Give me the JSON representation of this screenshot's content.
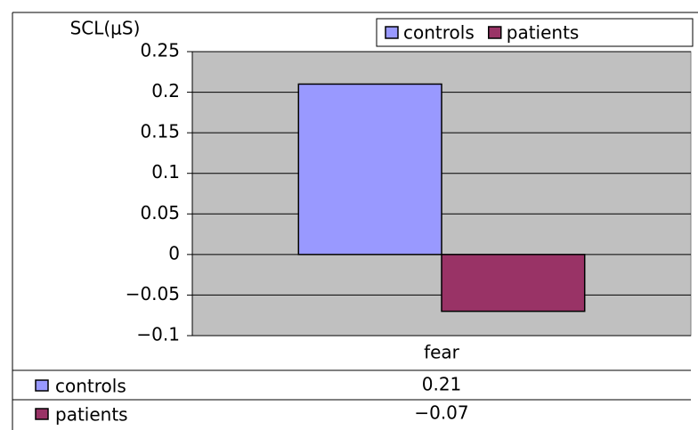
{
  "chart_data": {
    "type": "bar",
    "y_label": "SCL(μS)",
    "categories": [
      "fear"
    ],
    "series": [
      {
        "name": "controls",
        "color": "#9999ff",
        "values": [
          0.21
        ]
      },
      {
        "name": "patients",
        "color": "#993366",
        "values": [
          -0.07
        ],
        "value_labels": [
          "−0.07"
        ]
      }
    ],
    "ylim": [
      -0.1,
      0.25
    ],
    "yticks": [
      0.25,
      0.2,
      0.15,
      0.1,
      0.05,
      0,
      {
        "value": -0.05,
        "label": "−0.05"
      },
      {
        "value": -0.1,
        "label": "−0.1"
      }
    ],
    "grid": true,
    "legend": "top-right",
    "plot_background": "#c0c0c0",
    "data_table": true
  }
}
